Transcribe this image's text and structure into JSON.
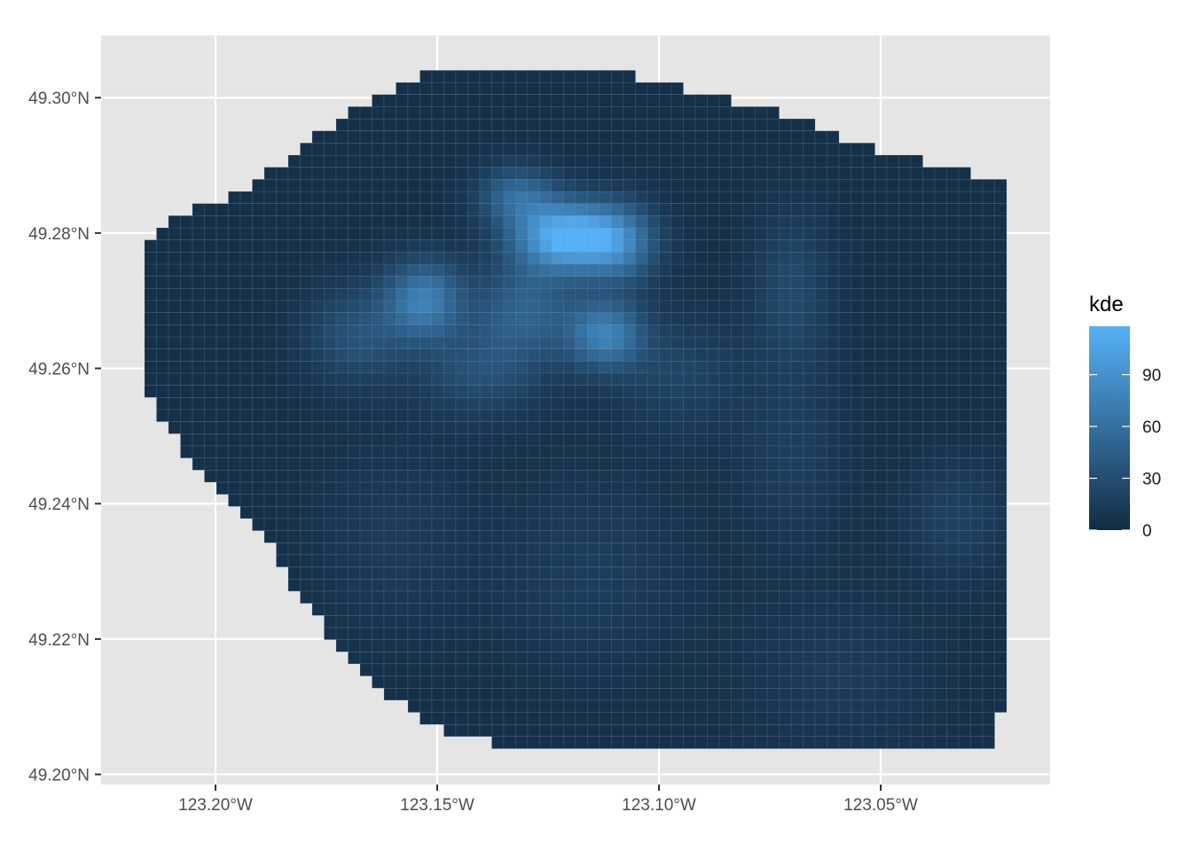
{
  "chart_data": {
    "type": "heatmap",
    "title": "",
    "xlabel": "",
    "ylabel": "",
    "x_range": [
      -123.2258,
      -123.0118
    ],
    "y_range": [
      49.1985,
      49.3092
    ],
    "x_ticks": [
      {
        "value": -123.2,
        "label": "123.20°W"
      },
      {
        "value": -123.15,
        "label": "123.15°W"
      },
      {
        "value": -123.1,
        "label": "123.10°W"
      },
      {
        "value": -123.05,
        "label": "123.05°W"
      }
    ],
    "y_ticks": [
      {
        "value": 49.2,
        "label": "49.20°N"
      },
      {
        "value": 49.22,
        "label": "49.22°N"
      },
      {
        "value": 49.24,
        "label": "49.24°N"
      },
      {
        "value": 49.26,
        "label": "49.26°N"
      },
      {
        "value": 49.28,
        "label": "49.28°N"
      },
      {
        "value": 49.3,
        "label": "49.30°N"
      }
    ],
    "grid": true,
    "cell_size_deg": {
      "lon": 0.0027,
      "lat": 0.00179
    },
    "boundary_polygon": [
      [
        -123.1472,
        49.3047
      ],
      [
        -123.1143,
        49.3047
      ],
      [
        -123.1033,
        49.3029
      ],
      [
        -123.0813,
        49.2993
      ],
      [
        -123.0703,
        49.2975
      ],
      [
        -123.0593,
        49.2939
      ],
      [
        -123.0483,
        49.2921
      ],
      [
        -123.0373,
        49.2903
      ],
      [
        -123.0291,
        49.2885
      ],
      [
        -123.0208,
        49.2867
      ],
      [
        -123.0208,
        49.2099
      ],
      [
        -123.0236,
        49.2081
      ],
      [
        -123.0236,
        49.2038
      ],
      [
        -123.1308,
        49.2038
      ],
      [
        -123.1473,
        49.2063
      ],
      [
        -123.1528,
        49.2081
      ],
      [
        -123.161,
        49.2117
      ],
      [
        -123.172,
        49.2189
      ],
      [
        -123.183,
        49.2278
      ],
      [
        -123.1885,
        49.235
      ],
      [
        -123.1968,
        49.2404
      ],
      [
        -123.205,
        49.2458
      ],
      [
        -123.2105,
        49.2512
      ],
      [
        -123.216,
        49.256
      ],
      [
        -123.216,
        49.2778
      ],
      [
        -123.2105,
        49.2814
      ],
      [
        -123.1995,
        49.2849
      ],
      [
        -123.1885,
        49.2885
      ],
      [
        -123.1775,
        49.2939
      ],
      [
        -123.1665,
        49.2993
      ],
      [
        -123.1555,
        49.3029
      ]
    ],
    "series": [
      {
        "name": "kde",
        "kernel_bandwidth_deg": 0.01,
        "base_value": 4,
        "hotspots": [
          {
            "lon": -123.121,
            "lat": 49.2795,
            "value": 115,
            "spread_lon": 0.008,
            "spread_lat": 0.0035
          },
          {
            "lon": -123.109,
            "lat": 49.2785,
            "value": 62,
            "spread_lon": 0.006,
            "spread_lat": 0.004
          },
          {
            "lon": -123.132,
            "lat": 49.2855,
            "value": 50,
            "spread_lon": 0.006,
            "spread_lat": 0.003
          },
          {
            "lon": -123.153,
            "lat": 49.2702,
            "value": 68,
            "spread_lon": 0.006,
            "spread_lat": 0.004
          },
          {
            "lon": -123.112,
            "lat": 49.265,
            "value": 70,
            "spread_lon": 0.006,
            "spread_lat": 0.0035
          },
          {
            "lon": -123.13,
            "lat": 49.269,
            "value": 42,
            "spread_lon": 0.008,
            "spread_lat": 0.005
          },
          {
            "lon": -123.168,
            "lat": 49.265,
            "value": 32,
            "spread_lon": 0.008,
            "spread_lat": 0.005
          },
          {
            "lon": -123.14,
            "lat": 49.26,
            "value": 28,
            "spread_lon": 0.01,
            "spread_lat": 0.005
          },
          {
            "lon": -123.07,
            "lat": 49.272,
            "value": 22,
            "spread_lon": 0.006,
            "spread_lat": 0.008
          },
          {
            "lon": -123.095,
            "lat": 49.259,
            "value": 18,
            "spread_lon": 0.01,
            "spread_lat": 0.006
          },
          {
            "lon": -123.033,
            "lat": 49.238,
            "value": 16,
            "spread_lon": 0.008,
            "spread_lat": 0.006
          },
          {
            "lon": -123.07,
            "lat": 49.248,
            "value": 13,
            "spread_lon": 0.008,
            "spread_lat": 0.01
          },
          {
            "lon": -123.115,
            "lat": 49.23,
            "value": 12,
            "spread_lon": 0.015,
            "spread_lat": 0.01
          },
          {
            "lon": -123.16,
            "lat": 49.235,
            "value": 10,
            "spread_lon": 0.012,
            "spread_lat": 0.01
          },
          {
            "lon": -123.06,
            "lat": 49.215,
            "value": 10,
            "spread_lon": 0.015,
            "spread_lat": 0.008
          }
        ]
      }
    ],
    "legend": {
      "title": "kde",
      "placement": "right",
      "breaks": [
        {
          "value": 0,
          "label": "0"
        },
        {
          "value": 30,
          "label": "30"
        },
        {
          "value": 60,
          "label": "60"
        },
        {
          "value": 90,
          "label": "90"
        }
      ],
      "limits": [
        0,
        118
      ],
      "low_color": "#132B43",
      "high_color": "#56B1F7"
    },
    "colors": {
      "panel_background": "#E5E5E5",
      "grid_major": "#FFFFFF",
      "tile_outline": "#7F93A6"
    }
  }
}
